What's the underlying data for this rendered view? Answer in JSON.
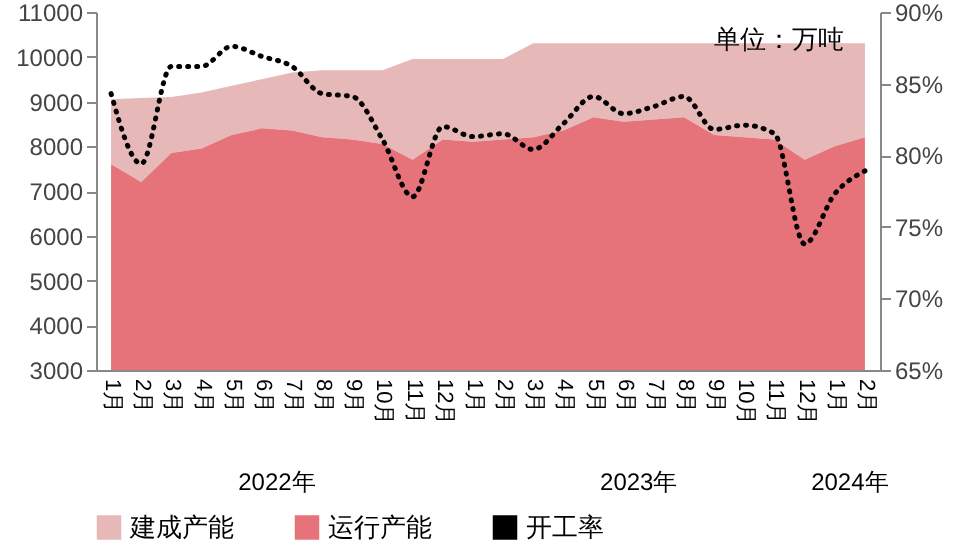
{
  "chart_data": {
    "type": "area",
    "categories": [
      "1月",
      "2月",
      "3月",
      "4月",
      "5月",
      "6月",
      "7月",
      "8月",
      "9月",
      "10月",
      "11月",
      "12月",
      "1月",
      "2月",
      "3月",
      "4月",
      "5月",
      "6月",
      "7月",
      "8月",
      "9月",
      "10月",
      "11月",
      "12月",
      "1月",
      "2月"
    ],
    "series": [
      {
        "name": "建成产能",
        "color": "#e6b8b7",
        "values": [
          9050,
          9080,
          9100,
          9200,
          9350,
          9500,
          9650,
          9700,
          9700,
          9700,
          9950,
          9950,
          9950,
          9950,
          10300,
          10300,
          10300,
          10300,
          10300,
          10300,
          10300,
          10300,
          10300,
          10300,
          10300,
          10300
        ]
      },
      {
        "name": "运行产能",
        "color": "#e57379",
        "values": [
          7600,
          7200,
          7850,
          7950,
          8250,
          8400,
          8350,
          8200,
          8150,
          8050,
          7700,
          8150,
          8100,
          8150,
          8200,
          8350,
          8650,
          8550,
          8600,
          8650,
          8250,
          8200,
          8150,
          7700,
          8000,
          8200
        ]
      },
      {
        "name": "开工率",
        "type": "line",
        "axis": "y2",
        "line_style": "dotted",
        "color": "#000000",
        "values": [
          84.3,
          79.4,
          86.2,
          86.2,
          87.6,
          86.9,
          86.2,
          84.3,
          84.1,
          81.1,
          77.1,
          82.0,
          81.3,
          81.5,
          80.4,
          82.2,
          84.1,
          82.9,
          83.4,
          84.1,
          81.8,
          82.1,
          81.5,
          73.8,
          77.3,
          78.9
        ]
      }
    ],
    "ylim": [
      3000,
      11000
    ],
    "yticks": [
      3000,
      4000,
      5000,
      6000,
      7000,
      8000,
      9000,
      10000,
      11000
    ],
    "y2lim": [
      65,
      90
    ],
    "y2ticks": [
      {
        "value": 65,
        "label": "65%"
      },
      {
        "value": 70,
        "label": "70%"
      },
      {
        "value": 75,
        "label": "75%"
      },
      {
        "value": 80,
        "label": "80%"
      },
      {
        "value": 85,
        "label": "85%"
      },
      {
        "value": 90,
        "label": "90%"
      }
    ],
    "legend": "bottom",
    "annotations": [
      "单位：万吨",
      "2022年",
      "2023年",
      "2024年"
    ]
  }
}
